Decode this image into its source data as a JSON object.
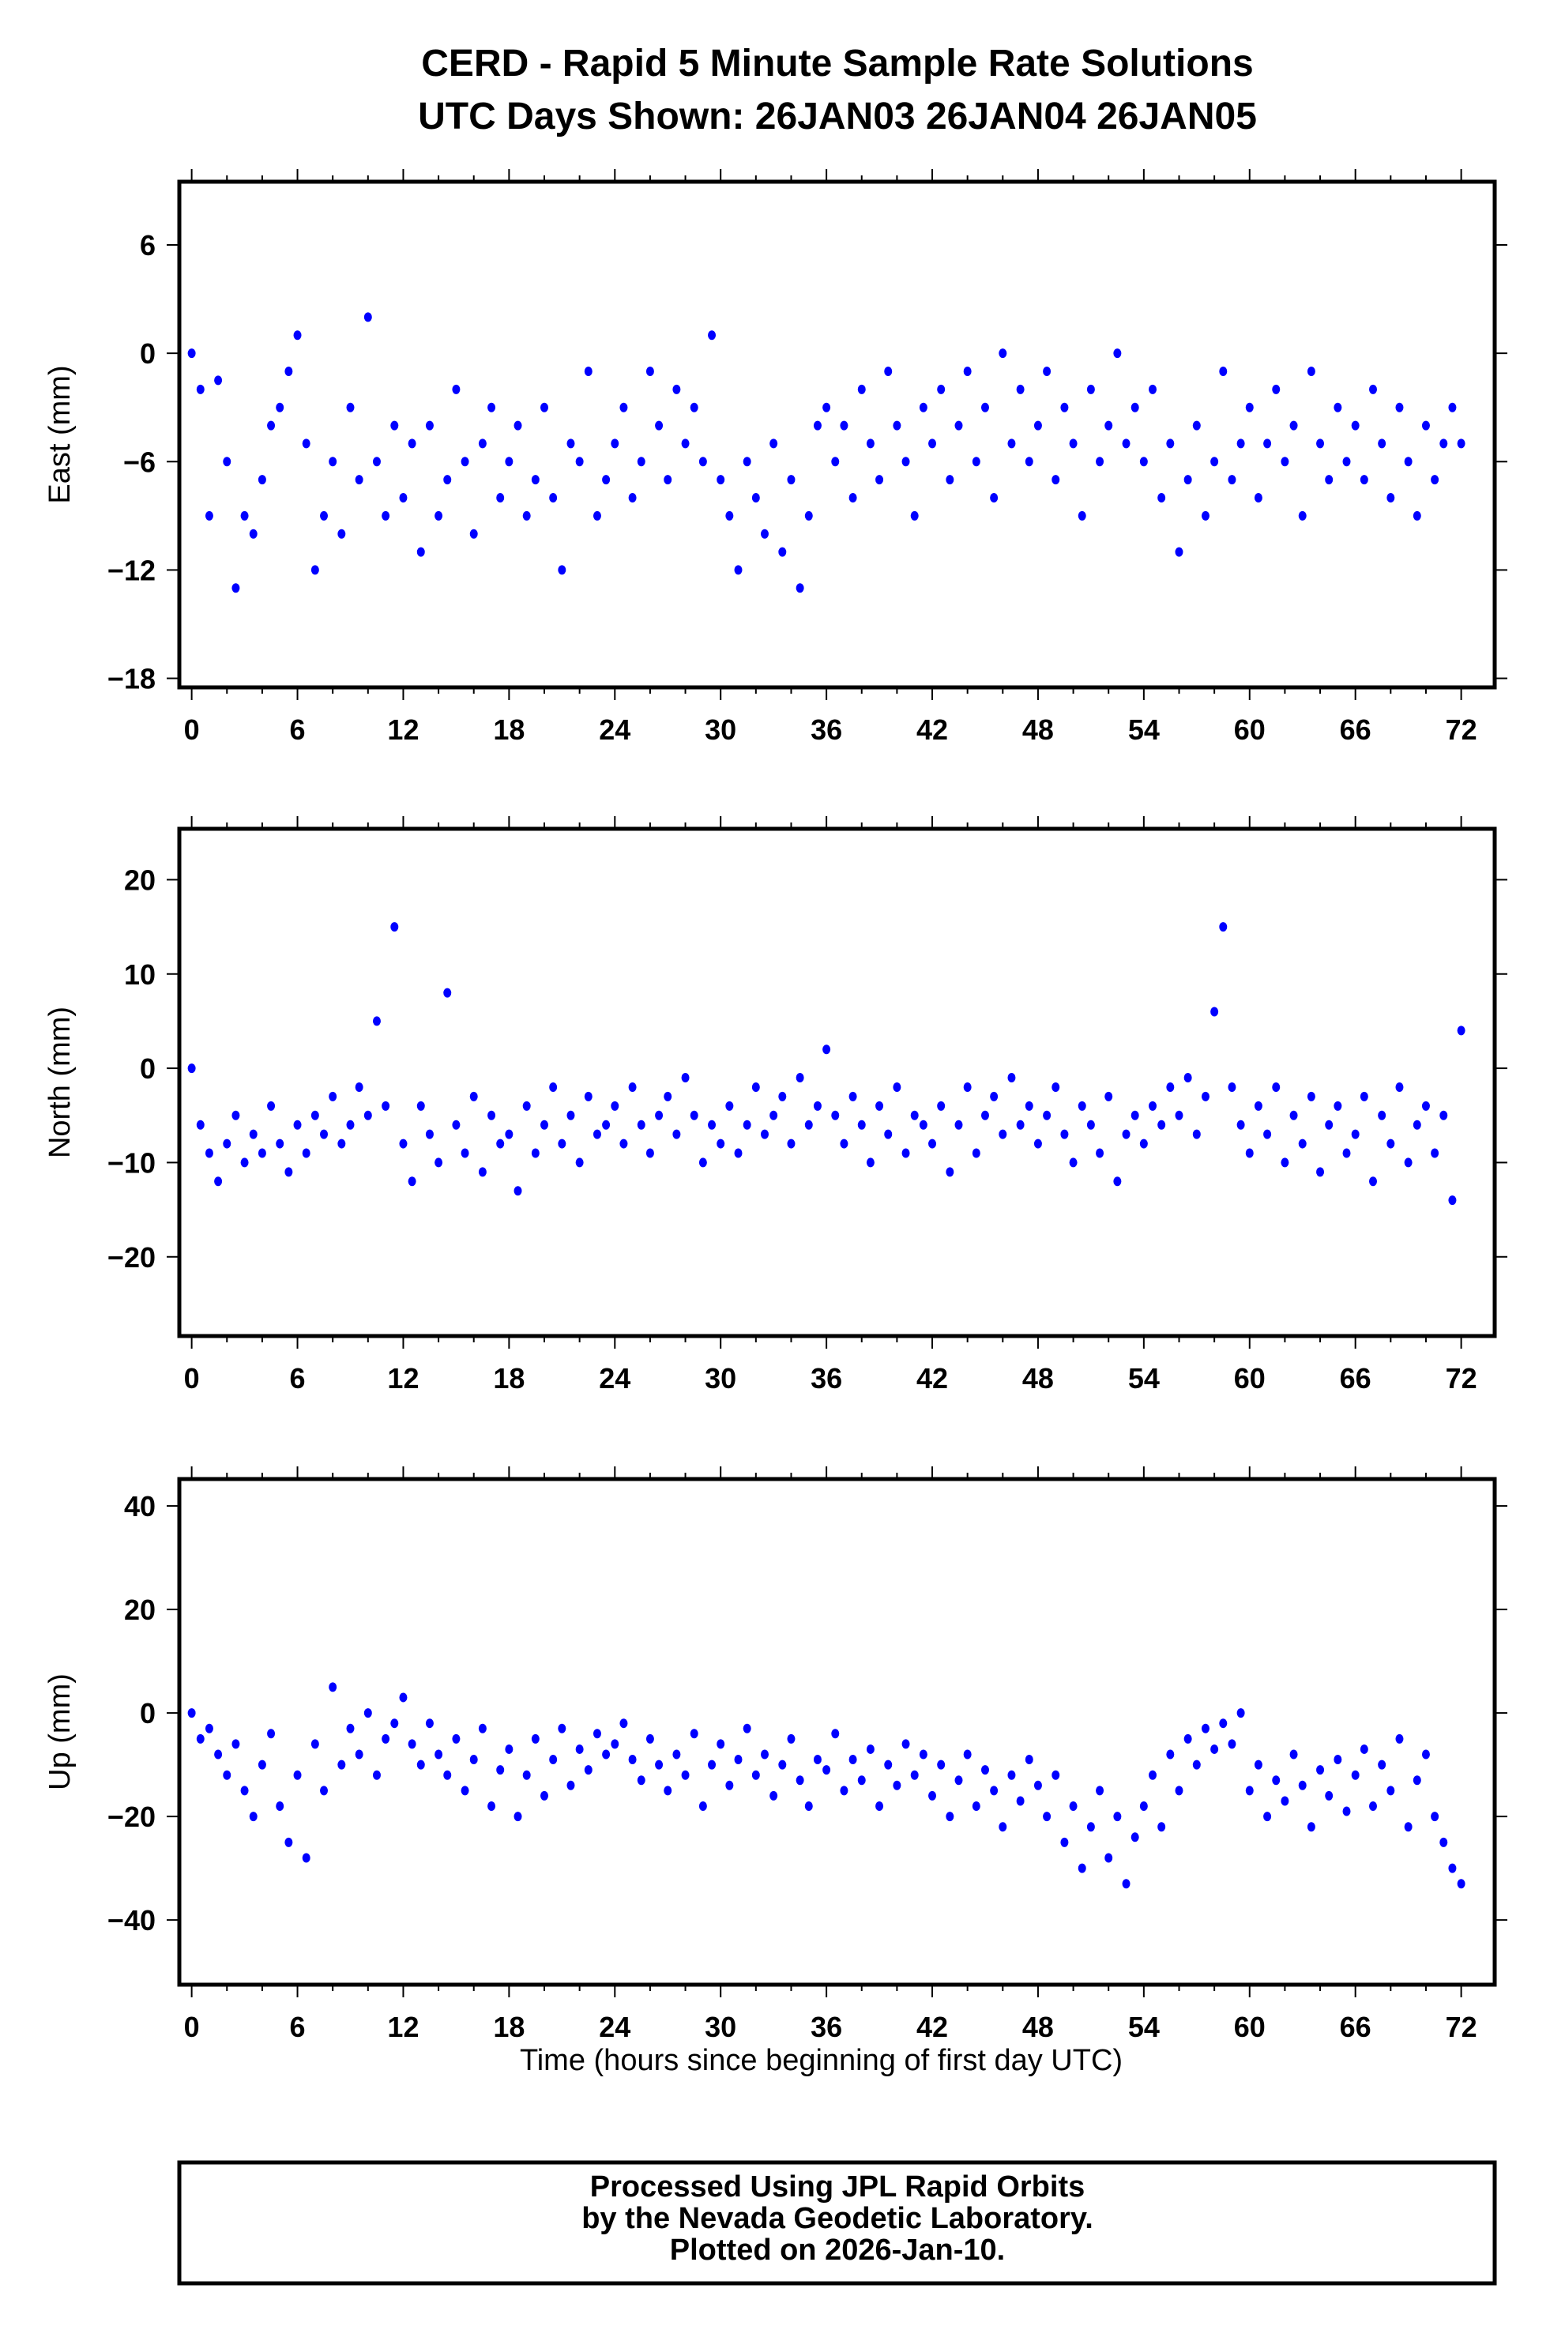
{
  "title": "CERD - Rapid 5 Minute Sample Rate Solutions",
  "subtitle": "UTC Days Shown:  26JAN03 26JAN04 26JAN05",
  "footer": {
    "line1": "Processed Using JPL Rapid Orbits",
    "line2": "by the Nevada Geodetic Laboratory.",
    "line3": "Plotted on 2026-Jan-10."
  },
  "chart_data": [
    {
      "type": "scatter",
      "ylabel": "East (mm)",
      "xlabel": "",
      "xlim": [
        -0.7,
        73.9
      ],
      "ylim": [
        -18.5,
        9.5
      ],
      "xticks": [
        "0",
        "6",
        "12",
        "18",
        "24",
        "30",
        "36",
        "42",
        "48",
        "54",
        "60",
        "66",
        "72"
      ],
      "yticks": [
        "6",
        "0",
        "-6",
        "-12",
        "-18"
      ],
      "color": "#0000ff",
      "x_start": 0,
      "x_step": 0.5,
      "values": [
        0,
        -2,
        -9,
        -1.5,
        -6,
        -13,
        -9,
        -10,
        -7,
        -4,
        -3,
        -1,
        1,
        -5,
        -12,
        -9,
        -6,
        -10,
        -3,
        -7,
        2,
        -6,
        -9,
        -4,
        -8,
        -5,
        -11,
        -4,
        -9,
        -7,
        -2,
        -6,
        -10,
        -5,
        -3,
        -8,
        -6,
        -4,
        -9,
        -7,
        -3,
        -8,
        -12,
        -5,
        -6,
        -1,
        -9,
        -7,
        -5,
        -3,
        -8,
        -6,
        -1,
        -4,
        -7,
        -2,
        -5,
        -3,
        -6,
        1,
        -7,
        -9,
        -12,
        -6,
        -8,
        -10,
        -5,
        -11,
        -7,
        -13,
        -9,
        -4,
        -3,
        -6,
        -4,
        -8,
        -2,
        -5,
        -7,
        -1,
        -4,
        -6,
        -9,
        -3,
        -5,
        -2,
        -7,
        -4,
        -1,
        -6,
        -3,
        -8,
        0,
        -5,
        -2,
        -6,
        -4,
        -1,
        -7,
        -3,
        -5,
        -9,
        -2,
        -6,
        -4,
        0,
        -5,
        -3,
        -6,
        -2,
        -8,
        -5,
        -11,
        -7,
        -4,
        -9,
        -6,
        -1,
        -7,
        -5,
        -3,
        -8,
        -5,
        -2,
        -6,
        -4,
        -9,
        -1,
        -5,
        -7,
        -3,
        -6,
        -4,
        -7,
        -2,
        -5,
        -8,
        -3,
        -6,
        -9,
        -4,
        -7,
        -5,
        -3,
        -5
      ]
    },
    {
      "type": "scatter",
      "ylabel": "North (mm)",
      "xlabel": "",
      "xlim": [
        -0.7,
        73.9
      ],
      "ylim": [
        -28.4,
        25.4
      ],
      "xticks": [
        "0",
        "6",
        "12",
        "18",
        "24",
        "30",
        "36",
        "42",
        "48",
        "54",
        "60",
        "66",
        "72"
      ],
      "yticks": [
        "20",
        "10",
        "0",
        "-10",
        "-20"
      ],
      "color": "#0000ff",
      "x_start": 0,
      "x_step": 0.5,
      "values": [
        0,
        -6,
        -9,
        -12,
        -8,
        -5,
        -10,
        -7,
        -9,
        -4,
        -8,
        -11,
        -6,
        -9,
        -5,
        -7,
        -3,
        -8,
        -6,
        -2,
        -5,
        5,
        -4,
        15,
        -8,
        -12,
        -4,
        -7,
        -10,
        8,
        -6,
        -9,
        -3,
        -11,
        -5,
        -8,
        -7,
        -13,
        -4,
        -9,
        -6,
        -2,
        -8,
        -5,
        -10,
        -3,
        -7,
        -6,
        -4,
        -8,
        -2,
        -6,
        -9,
        -5,
        -3,
        -7,
        -1,
        -5,
        -10,
        -6,
        -8,
        -4,
        -9,
        -6,
        -2,
        -7,
        -5,
        -3,
        -8,
        -1,
        -6,
        -4,
        2,
        -5,
        -8,
        -3,
        -6,
        -10,
        -4,
        -7,
        -2,
        -9,
        -5,
        -6,
        -8,
        -4,
        -11,
        -6,
        -2,
        -9,
        -5,
        -3,
        -7,
        -1,
        -6,
        -4,
        -8,
        -5,
        -2,
        -7,
        -10,
        -4,
        -6,
        -9,
        -3,
        -12,
        -7,
        -5,
        -8,
        -4,
        -6,
        -2,
        -5,
        -1,
        -7,
        -3,
        6,
        15,
        -2,
        -6,
        -9,
        -4,
        -7,
        -2,
        -10,
        -5,
        -8,
        -3,
        -11,
        -6,
        -4,
        -9,
        -7,
        -3,
        -12,
        -5,
        -8,
        -2,
        -10,
        -6,
        -4,
        -9,
        -5,
        -14,
        4
      ]
    },
    {
      "type": "scatter",
      "ylabel": "Up (mm)",
      "xlabel": "Time (hours since beginning of first day UTC)",
      "xlim": [
        -0.7,
        73.9
      ],
      "ylim": [
        -52.5,
        45.2
      ],
      "xticks": [
        "0",
        "6",
        "12",
        "18",
        "24",
        "30",
        "36",
        "42",
        "48",
        "54",
        "60",
        "66",
        "72"
      ],
      "yticks": [
        "40",
        "20",
        "0",
        "-20",
        "-40"
      ],
      "color": "#0000ff",
      "x_start": 0,
      "x_step": 0.5,
      "values": [
        0,
        -5,
        -3,
        -8,
        -12,
        -6,
        -15,
        -20,
        -10,
        -4,
        -18,
        -25,
        -12,
        -28,
        -6,
        -15,
        5,
        -10,
        -3,
        -8,
        0,
        -12,
        -5,
        -2,
        3,
        -6,
        -10,
        -2,
        -8,
        -12,
        -5,
        -15,
        -9,
        -3,
        -18,
        -11,
        -7,
        -20,
        -12,
        -5,
        -16,
        -9,
        -3,
        -14,
        -7,
        -11,
        -4,
        -8,
        -6,
        -2,
        -9,
        -13,
        -5,
        -10,
        -15,
        -8,
        -12,
        -4,
        -18,
        -10,
        -6,
        -14,
        -9,
        -3,
        -12,
        -8,
        -16,
        -10,
        -5,
        -13,
        -18,
        -9,
        -11,
        -4,
        -15,
        -9,
        -13,
        -7,
        -18,
        -10,
        -14,
        -6,
        -12,
        -8,
        -16,
        -10,
        -20,
        -13,
        -8,
        -18,
        -11,
        -15,
        -22,
        -12,
        -17,
        -9,
        -14,
        -20,
        -12,
        -25,
        -18,
        -30,
        -22,
        -15,
        -28,
        -20,
        -33,
        -24,
        -18,
        -12,
        -22,
        -8,
        -15,
        -5,
        -10,
        -3,
        -7,
        -2,
        -6,
        0,
        -15,
        -10,
        -20,
        -13,
        -17,
        -8,
        -14,
        -22,
        -11,
        -16,
        -9,
        -19,
        -12,
        -7,
        -18,
        -10,
        -15,
        -5,
        -22,
        -13,
        -8,
        -20,
        -25,
        -30,
        -33
      ]
    }
  ]
}
